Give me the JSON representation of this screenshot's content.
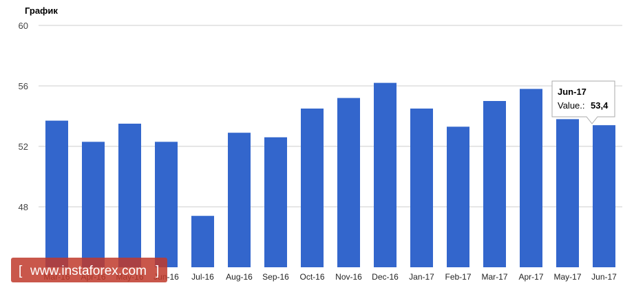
{
  "chart_data": {
    "type": "bar",
    "title": "График",
    "categories": [
      "Mar-16",
      "Apr-16",
      "May-16",
      "Jun-16",
      "Jul-16",
      "Aug-16",
      "Sep-16",
      "Oct-16",
      "Nov-16",
      "Dec-16",
      "Jan-17",
      "Feb-17",
      "Mar-17",
      "Apr-17",
      "May-17",
      "Jun-17"
    ],
    "values": [
      53.7,
      52.3,
      53.5,
      52.3,
      47.4,
      52.9,
      52.6,
      54.5,
      55.2,
      56.2,
      54.5,
      53.3,
      55.0,
      55.8,
      53.8,
      53.4
    ],
    "ylim": [
      44,
      60
    ],
    "yticks": [
      "60",
      "56",
      "52",
      "48"
    ],
    "grid": true,
    "bar_color": "#3366cc"
  },
  "tooltip": {
    "category": "Jun-17",
    "value_label": "Value.:",
    "value": "53,4"
  },
  "watermark": {
    "text": "www.instaforex.com",
    "bracket_left": "[",
    "bracket_right": "]",
    "color": "#c0392b"
  }
}
